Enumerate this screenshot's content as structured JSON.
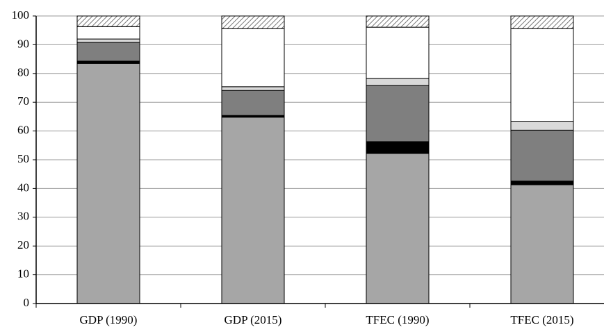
{
  "chart_data": {
    "type": "stacked_bar",
    "categories": [
      "GDP (1990)",
      "GDP (2015)",
      "TFEC (1990)",
      "TFEC (2015)"
    ],
    "series": [
      {
        "color": "#a6a6a6",
        "values": [
          83.5,
          64.8,
          52.2,
          41.3
        ]
      },
      {
        "color": "#000000",
        "values": [
          0.8,
          0.6,
          4.1,
          1.3
        ]
      },
      {
        "color": "#7f7f7f",
        "values": [
          6.5,
          8.7,
          19.5,
          17.7
        ]
      },
      {
        "color": "#d9d9d9",
        "values": [
          1.2,
          1.3,
          2.5,
          3.1
        ]
      },
      {
        "color": "#ffffff",
        "values": [
          4.3,
          20.2,
          17.8,
          32.2
        ]
      },
      {
        "color": "#ffffff",
        "pattern": "hatch",
        "values": [
          3.7,
          4.4,
          3.9,
          4.4
        ]
      }
    ],
    "ylim": [
      0,
      100
    ],
    "yticks": [
      0,
      10,
      20,
      30,
      40,
      50,
      60,
      70,
      80,
      90,
      100
    ],
    "grid": true
  }
}
